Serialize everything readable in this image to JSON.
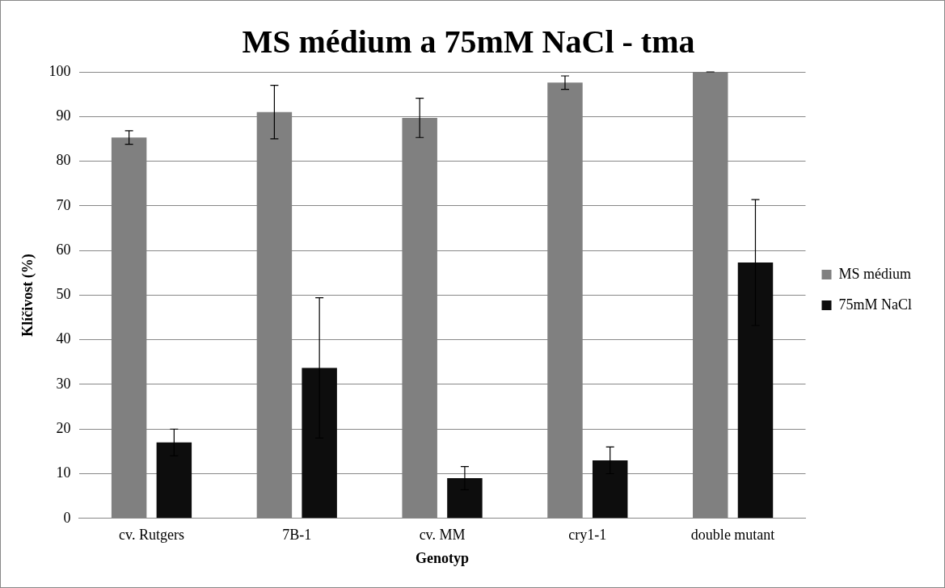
{
  "chart_data": {
    "type": "bar",
    "title": "MS médium a 75mM NaCl - tma",
    "xlabel": "Genotyp",
    "ylabel": "Klíčivost (%)",
    "categories": [
      "cv. Rutgers",
      "7B-1",
      "cv. MM",
      "cry1-1",
      "double mutant"
    ],
    "series": [
      {
        "name": "MS médium",
        "color": "#808080",
        "values": [
          85.3,
          91,
          89.7,
          97.6,
          100
        ],
        "errors": [
          1.5,
          6,
          4.4,
          1.5,
          0
        ]
      },
      {
        "name": "75mM NaCl",
        "color": "#0d0d0d",
        "values": [
          17,
          33.7,
          9,
          13,
          57.3
        ],
        "errors": [
          3,
          15.7,
          2.6,
          3,
          14.1
        ]
      }
    ],
    "ylim": [
      0,
      100
    ],
    "yticks": [
      0,
      10,
      20,
      30,
      40,
      50,
      60,
      70,
      80,
      90,
      100
    ],
    "grid": "y",
    "legend": "right"
  }
}
